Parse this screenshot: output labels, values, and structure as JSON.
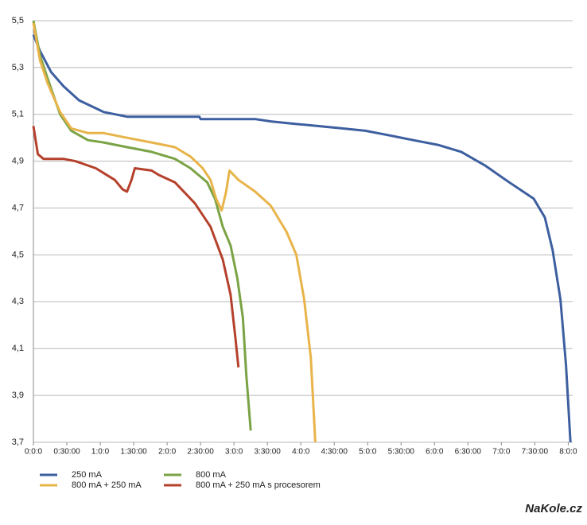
{
  "chart_data": {
    "type": "line",
    "xlim": [
      0,
      484
    ],
    "ylim": [
      3.7,
      5.5
    ],
    "xticks": [
      {
        "value": 0,
        "label": "0:0:0"
      },
      {
        "value": 30,
        "label": "0:30:00"
      },
      {
        "value": 60,
        "label": "1:0:0"
      },
      {
        "value": 90,
        "label": "1:30:00"
      },
      {
        "value": 120,
        "label": "2:0:0"
      },
      {
        "value": 150,
        "label": "2:30:00"
      },
      {
        "value": 180,
        "label": "3:0:0"
      },
      {
        "value": 210,
        "label": "3:30:00"
      },
      {
        "value": 240,
        "label": "4:0:0"
      },
      {
        "value": 270,
        "label": "4:30:00"
      },
      {
        "value": 300,
        "label": "5:0:0"
      },
      {
        "value": 330,
        "label": "5:30:00"
      },
      {
        "value": 360,
        "label": "6:0:0"
      },
      {
        "value": 390,
        "label": "6:30:00"
      },
      {
        "value": 420,
        "label": "7:0:0"
      },
      {
        "value": 450,
        "label": "7:30:00"
      },
      {
        "value": 480,
        "label": "8:0:0"
      }
    ],
    "yticks": [
      {
        "value": 3.7,
        "label": "3,7"
      },
      {
        "value": 3.9,
        "label": "3,9"
      },
      {
        "value": 4.1,
        "label": "4,1"
      },
      {
        "value": 4.3,
        "label": "4,3"
      },
      {
        "value": 4.5,
        "label": "4,5"
      },
      {
        "value": 4.7,
        "label": "4,7"
      },
      {
        "value": 4.9,
        "label": "4,9"
      },
      {
        "value": 5.1,
        "label": "5,1"
      },
      {
        "value": 5.3,
        "label": "5,3"
      },
      {
        "value": 5.5,
        "label": "5,5"
      }
    ],
    "grid": true,
    "series": [
      {
        "name": "250 mA",
        "color": "#3d5fa0",
        "x": [
          0,
          6,
          16,
          27,
          41,
          63,
          84,
          149,
          150,
          199,
          213,
          234,
          256,
          277,
          298,
          320,
          341,
          363,
          384,
          406,
          427,
          449,
          459,
          466,
          473,
          478,
          482
        ],
        "values": [
          5.44,
          5.37,
          5.28,
          5.22,
          5.16,
          5.11,
          5.09,
          5.09,
          5.08,
          5.08,
          5.07,
          5.06,
          5.05,
          5.04,
          5.03,
          5.01,
          4.99,
          4.97,
          4.94,
          4.88,
          4.81,
          4.74,
          4.66,
          4.52,
          4.31,
          4.03,
          3.7
        ]
      },
      {
        "name": "800 mA",
        "color": "#7ba345",
        "x": [
          0,
          6,
          13,
          24,
          34,
          49,
          63,
          84,
          106,
          127,
          141,
          156,
          163,
          170,
          177,
          183,
          188,
          191,
          195
        ],
        "values": [
          5.5,
          5.35,
          5.25,
          5.1,
          5.03,
          4.99,
          4.98,
          4.96,
          4.94,
          4.91,
          4.87,
          4.81,
          4.74,
          4.62,
          4.54,
          4.4,
          4.23,
          3.99,
          3.75
        ]
      },
      {
        "name": "800 mA + 250 mA",
        "color": "#e8b44a",
        "x": [
          0,
          6,
          13,
          24,
          34,
          49,
          63,
          84,
          106,
          127,
          141,
          152,
          159,
          164,
          169,
          173,
          176,
          184,
          199,
          213,
          227,
          236,
          243,
          249,
          253
        ],
        "values": [
          5.49,
          5.33,
          5.23,
          5.11,
          5.04,
          5.02,
          5.02,
          5.0,
          4.98,
          4.96,
          4.92,
          4.87,
          4.82,
          4.74,
          4.69,
          4.77,
          4.86,
          4.82,
          4.77,
          4.71,
          4.6,
          4.5,
          4.31,
          4.06,
          3.7
        ]
      },
      {
        "name": "800 mA + 250 mA s procesorem",
        "color": "#b5412c",
        "x": [
          0,
          4,
          9,
          27,
          38,
          56,
          73,
          80,
          84,
          88,
          91,
          106,
          113,
          127,
          145,
          159,
          170,
          177,
          181,
          184
        ],
        "values": [
          5.05,
          4.93,
          4.91,
          4.91,
          4.9,
          4.87,
          4.82,
          4.78,
          4.77,
          4.82,
          4.87,
          4.86,
          4.84,
          4.81,
          4.72,
          4.62,
          4.48,
          4.33,
          4.16,
          4.02
        ]
      }
    ],
    "watermark": "NaKole.cz"
  }
}
